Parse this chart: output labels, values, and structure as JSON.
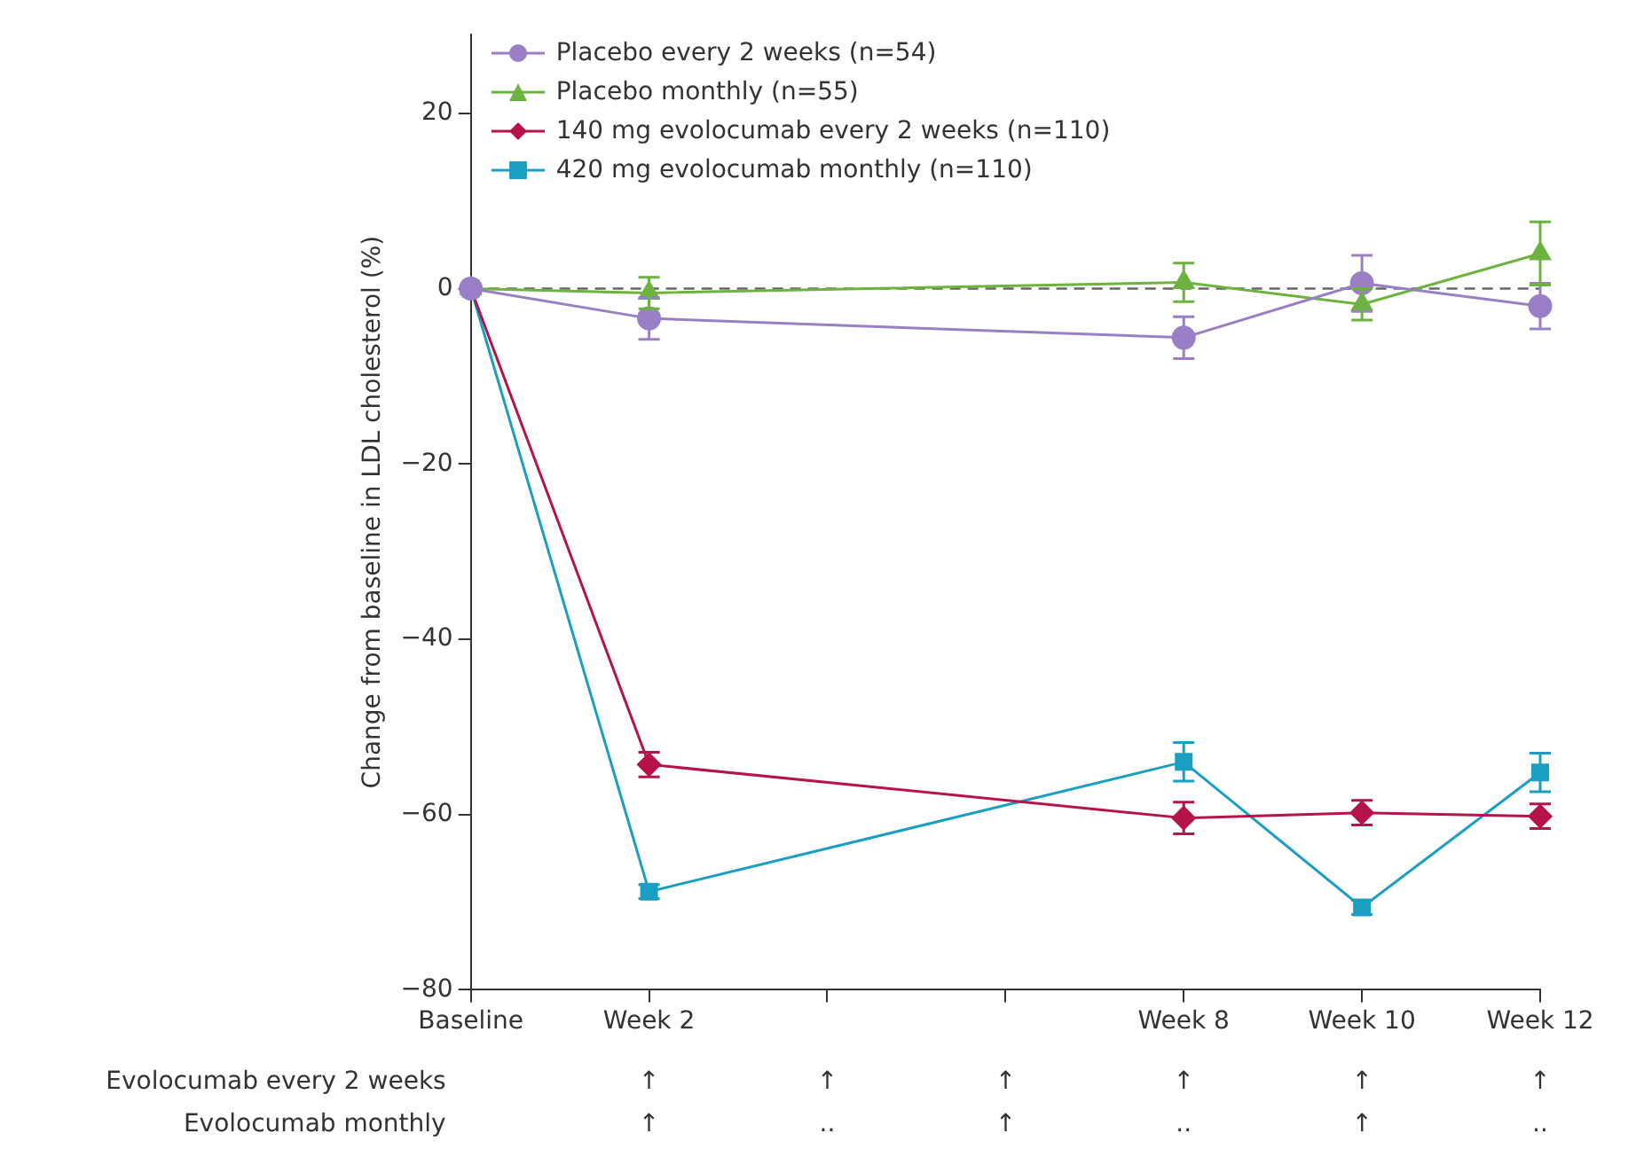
{
  "chart_data": {
    "type": "line",
    "ylabel": "Change from baseline in LDL cholesterol (%)",
    "categories": [
      "Baseline",
      "Week 2",
      null,
      null,
      "Week 8",
      "Week 10",
      "Week 12"
    ],
    "ylim": [
      -80,
      29
    ],
    "yticks": [
      -80,
      -60,
      -40,
      -20,
      0,
      20
    ],
    "series": [
      {
        "name": "Placebo every 2 weeks (n=54)",
        "color": "#9a7fc6",
        "marker": "circle",
        "values": [
          0,
          -3.4,
          null,
          null,
          -5.6,
          0.6,
          -2
        ],
        "errors": [
          null,
          2.4,
          null,
          null,
          2.4,
          3.2,
          2.6
        ]
      },
      {
        "name": "Placebo monthly (n=55)",
        "color": "#6cb43f",
        "marker": "triangle",
        "values": [
          0,
          -0.5,
          null,
          null,
          0.7,
          -1.8,
          4
        ],
        "errors": [
          null,
          1.8,
          null,
          null,
          2.2,
          1.8,
          3.6
        ]
      },
      {
        "name": "140 mg evolocumab every 2 weeks (n=110)",
        "color": "#b5134b",
        "marker": "diamond",
        "values": [
          0,
          -54.3,
          null,
          null,
          -60.4,
          -59.8,
          -60.2
        ],
        "errors": [
          null,
          1.4,
          null,
          null,
          1.8,
          1.4,
          1.4
        ]
      },
      {
        "name": "420 mg evolocumab monthly (n=110)",
        "color": "#1a9fc2",
        "marker": "square",
        "values": [
          0,
          -68.8,
          null,
          null,
          -54,
          -70.6,
          -55.2
        ],
        "errors": [
          null,
          0.8,
          null,
          null,
          2.2,
          0.8,
          2.2
        ]
      }
    ],
    "ref_lines": [
      {
        "axis": "y",
        "value": 0,
        "color": "#666666",
        "line_style": "dashed"
      }
    ],
    "grid": false,
    "legend": "top left",
    "annotations": [
      "Evolocumab every 2 weeks",
      "↑",
      "↑",
      "↑",
      "↑",
      "↑",
      "↑",
      "Evolocumab monthly",
      "↑",
      "..",
      "↑",
      "..",
      "↑",
      ".."
    ]
  }
}
